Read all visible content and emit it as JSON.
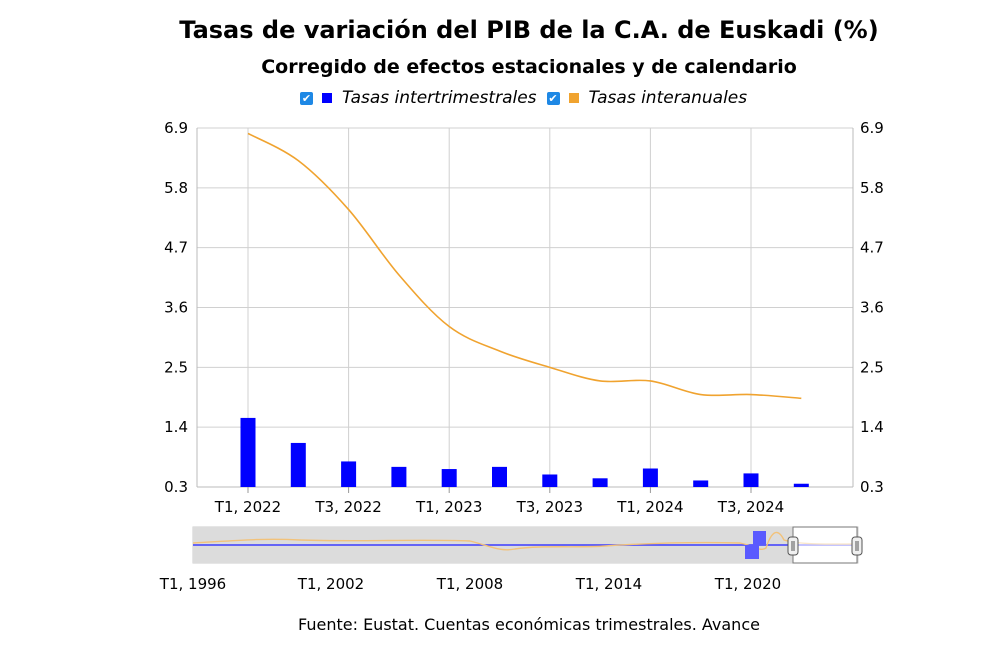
{
  "title": "Tasas de variación del PIB de la C.A. de Euskadi (%)",
  "subtitle": "Corregido de efectos estacionales y de calendario",
  "legend": [
    {
      "label": "Tasas intertrimestrales",
      "color": "#0000ff",
      "checked": true
    },
    {
      "label": "Tasas interanuales",
      "color": "#f0a32f",
      "checked": true
    }
  ],
  "source": "Fuente: Eustat. Cuentas económicas trimestrales. Avance",
  "colors": {
    "bars": "#0000ff",
    "line": "#f0a32f",
    "grid": "#d0d0d0",
    "checkbox": "#1e88e5"
  },
  "chart_data": {
    "type": "bar",
    "categories": [
      "T1, 2022",
      "T2, 2022",
      "T3, 2022",
      "T4, 2022",
      "T1, 2023",
      "T2, 2023",
      "T3, 2023",
      "T4, 2023",
      "T1, 2024",
      "T2, 2024",
      "T3, 2024",
      "T4, 2024"
    ],
    "x_tick_labels": [
      "T1, 2022",
      "T3, 2022",
      "T1, 2023",
      "T3, 2023",
      "T1, 2024",
      "T3, 2024"
    ],
    "y_ticks": [
      "0.3",
      "1.4",
      "2.5",
      "3.6",
      "4.7",
      "5.8",
      "6.9"
    ],
    "ylim": [
      0.3,
      6.9
    ],
    "series": [
      {
        "name": "Tasas intertrimestrales",
        "type": "bar",
        "values": [
          1.57,
          1.11,
          0.77,
          0.67,
          0.63,
          0.67,
          0.53,
          0.46,
          0.64,
          0.42,
          0.55,
          0.36
        ]
      },
      {
        "name": "Tasas interanuales",
        "type": "line",
        "values": [
          6.8,
          6.3,
          5.4,
          4.2,
          3.25,
          2.8,
          2.5,
          2.25,
          2.25,
          2.0,
          2.0,
          1.93
        ]
      }
    ],
    "grid": true,
    "legend_position": "top",
    "navigator": {
      "tick_labels": [
        "T1, 1996",
        "T1, 2002",
        "T1, 2008",
        "T1, 2014",
        "T1, 2020"
      ]
    }
  }
}
